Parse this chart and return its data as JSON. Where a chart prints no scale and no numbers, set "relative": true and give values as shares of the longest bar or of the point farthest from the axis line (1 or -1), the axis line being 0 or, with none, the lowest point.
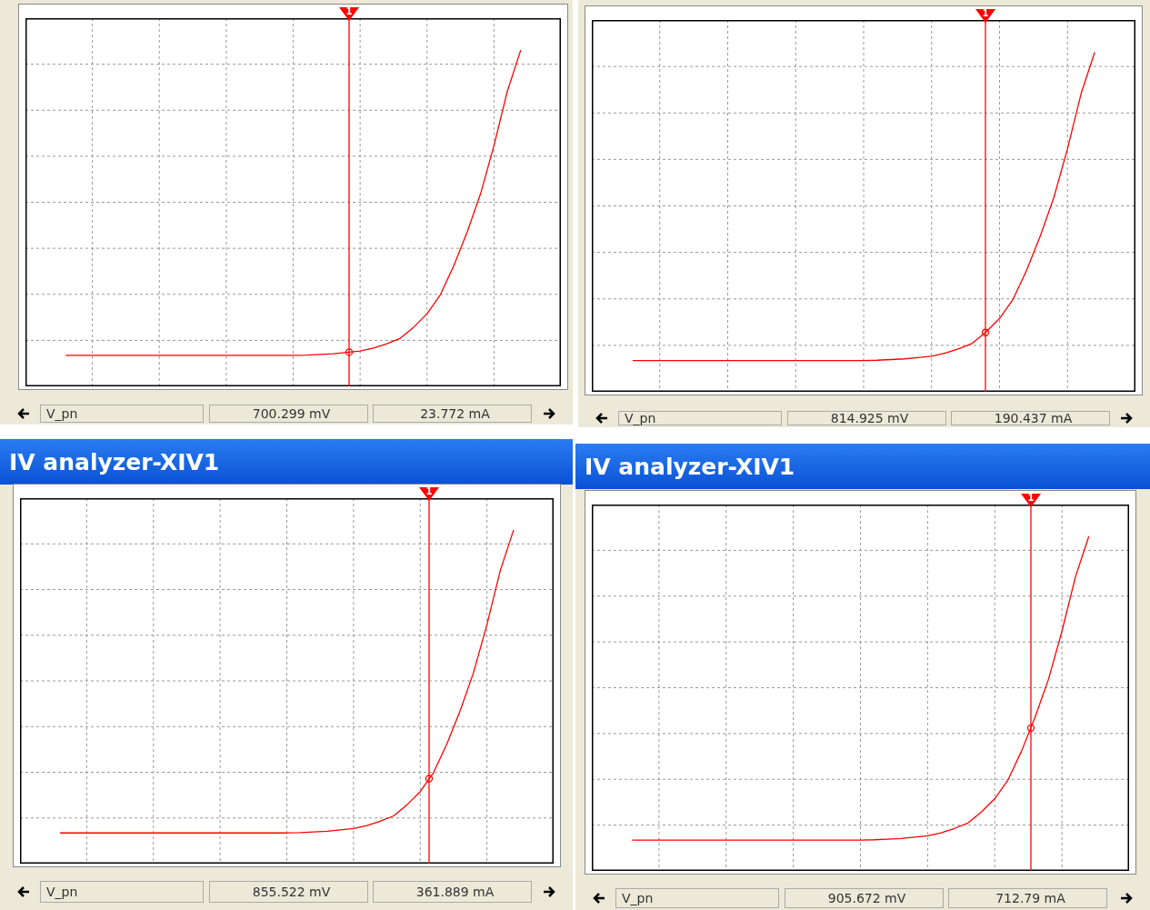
{
  "chart_data": [
    {
      "type": "line",
      "relative": true,
      "grid": true,
      "categories": [
        null,
        null,
        null,
        null,
        null,
        null,
        null,
        null,
        null,
        null,
        null,
        null,
        null,
        null,
        null,
        null,
        null,
        null,
        null,
        null,
        null,
        null,
        null,
        null,
        null,
        null,
        null,
        null,
        null,
        null,
        null,
        null,
        null,
        null,
        null,
        null,
        null,
        null,
        null,
        null,
        null
      ],
      "series": [
        {
          "color": "#ff0000",
          "values": [
            null,
            null,
            null,
            0.092,
            0.092,
            0.092,
            0.092,
            0.092,
            0.092,
            0.092,
            0.092,
            0.092,
            0.092,
            0.092,
            0.092,
            0.092,
            0.092,
            0.092,
            0.092,
            0.092,
            0.092,
            0.093,
            0.095,
            0.097,
            0.101,
            0.105,
            0.114,
            0.127,
            0.143,
            0.176,
            0.216,
            0.273,
            0.359,
            0.459,
            0.573,
            0.716,
            0.878,
            1,
            null,
            null,
            null
          ]
        }
      ],
      "annotations": [
        "1",
        "V_pn",
        "700.299 mV",
        "23.772 mA"
      ]
    },
    {
      "type": "line",
      "relative": true,
      "grid": true,
      "categories": [
        null,
        null,
        null,
        null,
        null,
        null,
        null,
        null,
        null,
        null,
        null,
        null,
        null,
        null,
        null,
        null,
        null,
        null,
        null,
        null,
        null,
        null,
        null,
        null,
        null,
        null,
        null,
        null,
        null,
        null,
        null,
        null,
        null,
        null,
        null,
        null,
        null,
        null,
        null,
        null,
        null
      ],
      "series": [
        {
          "color": "#ff0000",
          "values": [
            null,
            null,
            null,
            0.092,
            0.092,
            0.092,
            0.092,
            0.092,
            0.092,
            0.092,
            0.092,
            0.092,
            0.092,
            0.092,
            0.092,
            0.092,
            0.092,
            0.092,
            0.092,
            0.092,
            0.092,
            0.093,
            0.095,
            0.097,
            0.101,
            0.105,
            0.114,
            0.127,
            0.143,
            0.176,
            0.216,
            0.273,
            0.359,
            0.459,
            0.573,
            0.716,
            0.878,
            1,
            null,
            null,
            null
          ]
        }
      ],
      "annotations": [
        "1",
        "V_pn",
        "814.925 mV",
        "190.437 mA"
      ]
    },
    {
      "type": "line",
      "relative": true,
      "grid": true,
      "title": "IV analyzer-XIV1",
      "categories": [
        null,
        null,
        null,
        null,
        null,
        null,
        null,
        null,
        null,
        null,
        null,
        null,
        null,
        null,
        null,
        null,
        null,
        null,
        null,
        null,
        null,
        null,
        null,
        null,
        null,
        null,
        null,
        null,
        null,
        null,
        null,
        null,
        null,
        null,
        null,
        null,
        null,
        null,
        null,
        null,
        null
      ],
      "series": [
        {
          "color": "#ff0000",
          "values": [
            null,
            null,
            null,
            0.092,
            0.092,
            0.092,
            0.092,
            0.092,
            0.092,
            0.092,
            0.092,
            0.092,
            0.092,
            0.092,
            0.092,
            0.092,
            0.092,
            0.092,
            0.092,
            0.092,
            0.092,
            0.093,
            0.095,
            0.097,
            0.101,
            0.105,
            0.114,
            0.127,
            0.143,
            0.176,
            0.216,
            0.273,
            0.359,
            0.459,
            0.573,
            0.716,
            0.878,
            1,
            null,
            null,
            null
          ]
        }
      ],
      "annotations": [
        "1",
        "V_pn",
        "855.522 mV",
        "361.889 mA"
      ]
    },
    {
      "type": "line",
      "relative": true,
      "grid": true,
      "title": "IV analyzer-XIV1",
      "categories": [
        null,
        null,
        null,
        null,
        null,
        null,
        null,
        null,
        null,
        null,
        null,
        null,
        null,
        null,
        null,
        null,
        null,
        null,
        null,
        null,
        null,
        null,
        null,
        null,
        null,
        null,
        null,
        null,
        null,
        null,
        null,
        null,
        null,
        null,
        null,
        null,
        null,
        null,
        null,
        null,
        null
      ],
      "series": [
        {
          "color": "#ff0000",
          "values": [
            null,
            null,
            null,
            0.092,
            0.092,
            0.092,
            0.092,
            0.092,
            0.092,
            0.092,
            0.092,
            0.092,
            0.092,
            0.092,
            0.092,
            0.092,
            0.092,
            0.092,
            0.092,
            0.092,
            0.092,
            0.093,
            0.095,
            0.097,
            0.101,
            0.105,
            0.114,
            0.127,
            0.143,
            0.176,
            0.216,
            0.273,
            0.359,
            0.459,
            0.573,
            0.716,
            0.878,
            1,
            null,
            null,
            null
          ]
        }
      ],
      "annotations": [
        "1",
        "V_pn",
        "905.672 mV",
        "712.79 mA"
      ]
    }
  ]
}
